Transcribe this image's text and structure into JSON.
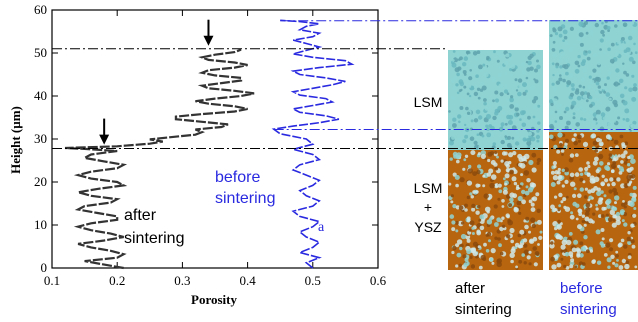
{
  "chart_data": {
    "type": "line",
    "xlabel": "Porosity",
    "ylabel": "Height (µm)",
    "xlim": [
      0.1,
      0.6
    ],
    "ylim": [
      0,
      60
    ],
    "xticks": [
      "0.1",
      "0.2",
      "0.3",
      "0.4",
      "0.5",
      "0.6"
    ],
    "yticks": [
      "0",
      "10",
      "20",
      "30",
      "40",
      "50",
      "60"
    ],
    "series": [
      {
        "name": "after sintering",
        "color": "#333333",
        "points": [
          [
            0.21,
            0
          ],
          [
            0.18,
            0.8
          ],
          [
            0.15,
            1.6
          ],
          [
            0.2,
            2.4
          ],
          [
            0.21,
            3.2
          ],
          [
            0.19,
            4
          ],
          [
            0.16,
            4.8
          ],
          [
            0.14,
            5.6
          ],
          [
            0.18,
            6.4
          ],
          [
            0.21,
            7.2
          ],
          [
            0.19,
            8
          ],
          [
            0.16,
            8.8
          ],
          [
            0.14,
            9.6
          ],
          [
            0.16,
            10.4
          ],
          [
            0.2,
            11.2
          ],
          [
            0.2,
            12
          ],
          [
            0.17,
            12.8
          ],
          [
            0.14,
            13.6
          ],
          [
            0.15,
            14.4
          ],
          [
            0.19,
            15.2
          ],
          [
            0.2,
            16
          ],
          [
            0.16,
            16.8
          ],
          [
            0.14,
            17.6
          ],
          [
            0.17,
            18.4
          ],
          [
            0.21,
            19.2
          ],
          [
            0.2,
            20
          ],
          [
            0.16,
            20.8
          ],
          [
            0.14,
            21.6
          ],
          [
            0.16,
            22.4
          ],
          [
            0.2,
            23.2
          ],
          [
            0.21,
            24
          ],
          [
            0.18,
            24.8
          ],
          [
            0.15,
            25.6
          ],
          [
            0.16,
            26.4
          ],
          [
            0.2,
            27.2
          ],
          [
            0.15,
            27.7
          ],
          [
            0.12,
            27.9
          ],
          [
            0.2,
            28.3
          ],
          [
            0.25,
            28.9
          ],
          [
            0.27,
            29.4
          ],
          [
            0.25,
            29.9
          ],
          [
            0.28,
            30.4
          ],
          [
            0.32,
            31
          ],
          [
            0.33,
            31.6
          ],
          [
            0.32,
            32.2
          ],
          [
            0.36,
            32.8
          ],
          [
            0.37,
            33.4
          ],
          [
            0.33,
            34
          ],
          [
            0.29,
            34.6
          ],
          [
            0.29,
            35.2
          ],
          [
            0.33,
            35.8
          ],
          [
            0.38,
            36.4
          ],
          [
            0.4,
            37
          ],
          [
            0.38,
            37.6
          ],
          [
            0.34,
            38.2
          ],
          [
            0.32,
            38.8
          ],
          [
            0.35,
            39.4
          ],
          [
            0.39,
            40
          ],
          [
            0.41,
            40.6
          ],
          [
            0.38,
            41.2
          ],
          [
            0.34,
            41.8
          ],
          [
            0.33,
            42.4
          ],
          [
            0.36,
            43
          ],
          [
            0.39,
            43.6
          ],
          [
            0.39,
            44.2
          ],
          [
            0.35,
            44.8
          ],
          [
            0.33,
            45.4
          ],
          [
            0.34,
            46
          ],
          [
            0.38,
            46.6
          ],
          [
            0.4,
            47.2
          ],
          [
            0.38,
            47.8
          ],
          [
            0.34,
            48.4
          ],
          [
            0.33,
            49
          ],
          [
            0.35,
            49.6
          ],
          [
            0.38,
            50.2
          ],
          [
            0.39,
            50.8
          ]
        ]
      },
      {
        "name": "before sintering",
        "color": "#2a2ae0",
        "points": [
          [
            0.5,
            0
          ],
          [
            0.49,
            1.2
          ],
          [
            0.51,
            2.4
          ],
          [
            0.48,
            3.6
          ],
          [
            0.5,
            4.8
          ],
          [
            0.51,
            6
          ],
          [
            0.49,
            7.2
          ],
          [
            0.48,
            8.4
          ],
          [
            0.5,
            9.6
          ],
          [
            0.51,
            10.8
          ],
          [
            0.48,
            12
          ],
          [
            0.47,
            13.2
          ],
          [
            0.5,
            14.4
          ],
          [
            0.51,
            15.6
          ],
          [
            0.49,
            16.8
          ],
          [
            0.48,
            18
          ],
          [
            0.5,
            19.2
          ],
          [
            0.51,
            20.4
          ],
          [
            0.49,
            21.6
          ],
          [
            0.47,
            22.8
          ],
          [
            0.48,
            24
          ],
          [
            0.51,
            25.2
          ],
          [
            0.5,
            26.4
          ],
          [
            0.47,
            27.6
          ],
          [
            0.5,
            28.8
          ],
          [
            0.49,
            30
          ],
          [
            0.45,
            31.2
          ],
          [
            0.44,
            32.3
          ],
          [
            0.47,
            33
          ],
          [
            0.51,
            33.8
          ],
          [
            0.54,
            34.6
          ],
          [
            0.52,
            35.4
          ],
          [
            0.48,
            36.2
          ],
          [
            0.47,
            37
          ],
          [
            0.5,
            37.8
          ],
          [
            0.53,
            38.6
          ],
          [
            0.52,
            39.4
          ],
          [
            0.48,
            40.2
          ],
          [
            0.47,
            41
          ],
          [
            0.5,
            41.8
          ],
          [
            0.53,
            42.6
          ],
          [
            0.55,
            43.4
          ],
          [
            0.52,
            44.2
          ],
          [
            0.48,
            45
          ],
          [
            0.47,
            45.8
          ],
          [
            0.51,
            46.6
          ],
          [
            0.56,
            47.4
          ],
          [
            0.55,
            48.2
          ],
          [
            0.5,
            49
          ],
          [
            0.47,
            49.8
          ],
          [
            0.49,
            50.6
          ],
          [
            0.51,
            51.4
          ],
          [
            0.49,
            52.2
          ],
          [
            0.47,
            53
          ],
          [
            0.5,
            53.8
          ],
          [
            0.51,
            54.6
          ],
          [
            0.48,
            55.4
          ],
          [
            0.49,
            56.2
          ],
          [
            0.51,
            56.8
          ],
          [
            0.48,
            57.3
          ],
          [
            0.45,
            57.6
          ]
        ]
      }
    ],
    "annotations": {
      "after_label": [
        "after",
        "sintering"
      ],
      "before_label": [
        "before",
        "sintering"
      ],
      "marker_a": "a",
      "arrows_porosity": [
        0.34,
        0.18
      ],
      "arrows_height": [
        51,
        28
      ]
    },
    "reference_lines": {
      "black_heights": [
        51,
        27.8
      ],
      "blue_heights": [
        57.5,
        32.2
      ]
    }
  },
  "panel": {
    "layer_top": "LSM",
    "layer_bottom": [
      "LSM",
      "+",
      "YSZ"
    ],
    "caption_after": [
      "after",
      "sintering"
    ],
    "caption_before": [
      "before",
      "sintering"
    ],
    "colors": {
      "lsm": "#8fd3d3",
      "lsm_dark": "#5fa3ad",
      "ysz": "#b8650f",
      "ysz_light": "#cfe8e8"
    }
  }
}
